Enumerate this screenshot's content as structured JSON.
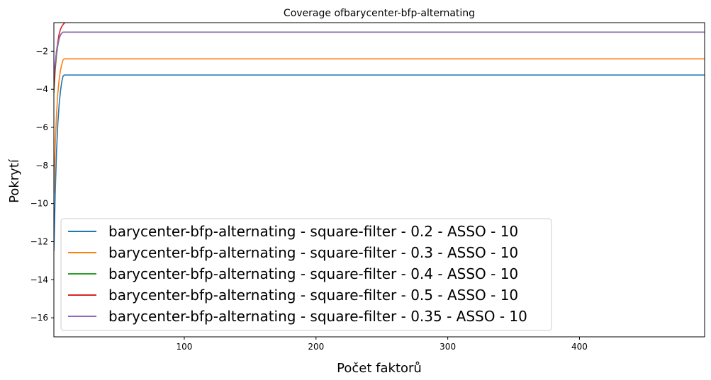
{
  "chart_data": {
    "type": "line",
    "title": "Coverage ofbarycenter-bfp-alternating",
    "xlabel": "Počet faktorů",
    "ylabel": "Pokrytí",
    "xlim": [
      1,
      495
    ],
    "ylim": [
      -17.0,
      -0.5
    ],
    "xticks": [
      100,
      200,
      300,
      400
    ],
    "yticks": [
      -16,
      -14,
      -12,
      -10,
      -8,
      -6,
      -4,
      -2
    ],
    "grid": false,
    "legend_position": "bottom-left",
    "series": [
      {
        "name": "barycenter-bfp-alternating - square-filter - 0.2 - ASSO - 10",
        "color": "#1f77b4",
        "points": [
          [
            1,
            -12.5
          ],
          [
            2,
            -9.5
          ],
          [
            3,
            -7.3
          ],
          [
            4,
            -5.8
          ],
          [
            5,
            -4.8
          ],
          [
            6,
            -4.1
          ],
          [
            7,
            -3.6
          ],
          [
            8,
            -3.3
          ],
          [
            9,
            -3.25
          ],
          [
            495,
            -3.25
          ]
        ]
      },
      {
        "name": "barycenter-bfp-alternating - square-filter - 0.3 - ASSO - 10",
        "color": "#ff7f0e",
        "points": [
          [
            1,
            -9.5
          ],
          [
            2,
            -7.0
          ],
          [
            3,
            -5.3
          ],
          [
            4,
            -4.2
          ],
          [
            5,
            -3.5
          ],
          [
            6,
            -3.0
          ],
          [
            7,
            -2.7
          ],
          [
            8,
            -2.45
          ],
          [
            9,
            -2.4
          ],
          [
            495,
            -2.4
          ]
        ]
      },
      {
        "name": "barycenter-bfp-alternating - square-filter - 0.4 - ASSO - 10",
        "color": "#2ca02c",
        "points": [
          [
            1,
            -4.2
          ],
          [
            2,
            -3.0
          ],
          [
            3,
            -2.2
          ],
          [
            4,
            -1.7
          ],
          [
            5,
            -1.35
          ],
          [
            6,
            -1.15
          ],
          [
            7,
            -1.05
          ],
          [
            8,
            -1.0
          ],
          [
            495,
            -1.0
          ]
        ]
      },
      {
        "name": "barycenter-bfp-alternating - square-filter - 0.5 - ASSO - 10",
        "color": "#d62728",
        "points": [
          [
            1,
            -4.0
          ],
          [
            2,
            -2.8
          ],
          [
            3,
            -2.0
          ],
          [
            4,
            -1.5
          ],
          [
            5,
            -1.1
          ],
          [
            6,
            -0.85
          ],
          [
            7,
            -0.7
          ],
          [
            8,
            -0.6
          ],
          [
            9,
            -0.52
          ],
          [
            10,
            -0.46
          ],
          [
            12,
            -0.4
          ],
          [
            495,
            -0.4
          ]
        ]
      },
      {
        "name": "barycenter-bfp-alternating - square-filter - 0.35 - ASSO - 10",
        "color": "#9467bd",
        "points": [
          [
            1,
            -3.3
          ],
          [
            2,
            -2.6
          ],
          [
            3,
            -2.0
          ],
          [
            4,
            -1.6
          ],
          [
            5,
            -1.35
          ],
          [
            6,
            -1.15
          ],
          [
            7,
            -1.05
          ],
          [
            8,
            -1.0
          ],
          [
            495,
            -1.0
          ]
        ]
      }
    ]
  }
}
